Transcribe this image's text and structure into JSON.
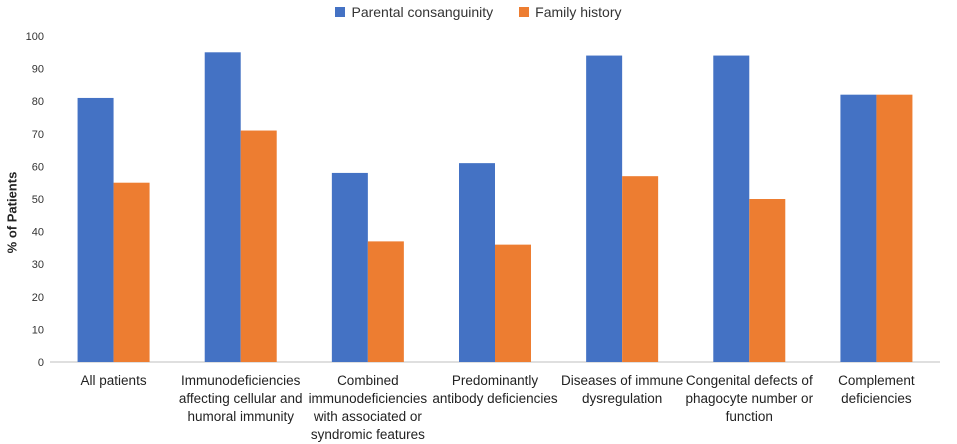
{
  "chart_data": {
    "type": "bar",
    "title": "",
    "xlabel": "",
    "ylabel": "% of Patients",
    "ylim": [
      0,
      100
    ],
    "yticks": [
      0,
      10,
      20,
      30,
      40,
      50,
      60,
      70,
      80,
      90,
      100
    ],
    "grid": false,
    "legend_position": "top-center",
    "categories": [
      "All patients",
      "Immunodeficiencies affecting cellular and humoral immunity",
      "Combined immunodeficiencies with associated or syndromic features",
      "Predominantly antibody deficiencies",
      "Diseases of immune dysregulation",
      "Congenital defects of phagocyte number or function",
      "Complement deficiencies"
    ],
    "series": [
      {
        "name": "Parental consanguinity",
        "color": "#4472C4",
        "values": [
          81,
          95,
          58,
          61,
          94,
          94,
          82
        ]
      },
      {
        "name": "Family history",
        "color": "#ED7D31",
        "values": [
          55,
          71,
          37,
          36,
          57,
          50,
          82
        ]
      }
    ]
  }
}
